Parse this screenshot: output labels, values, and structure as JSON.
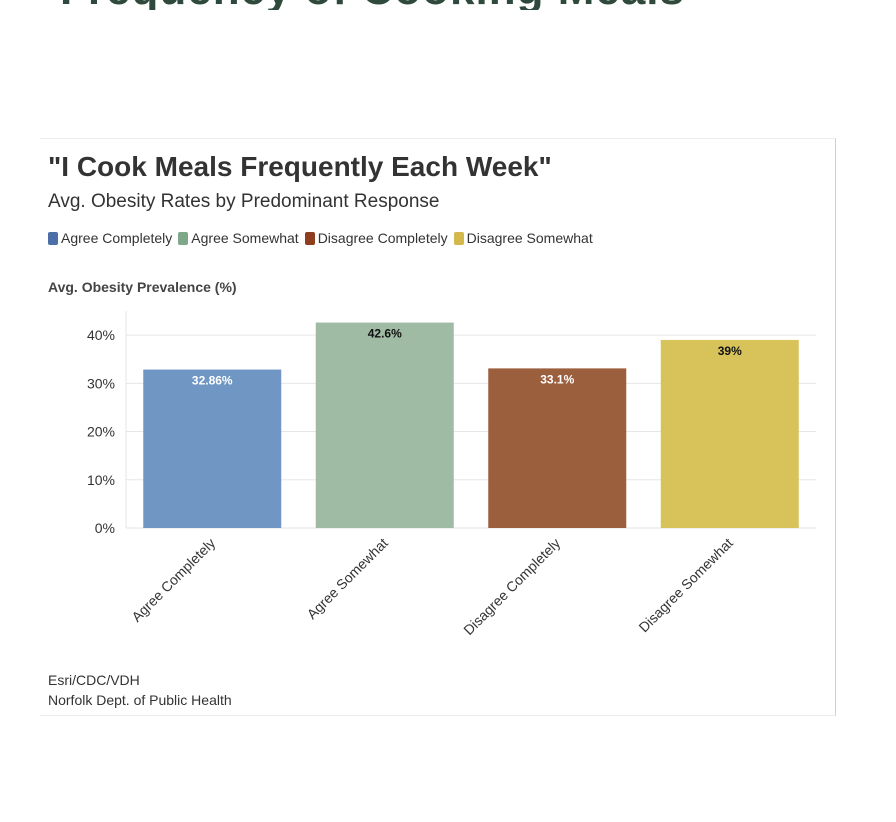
{
  "page_heading": "Frequency of Cooking Meals Weekly",
  "chart_data": {
    "type": "bar",
    "title": "\"I Cook Meals Frequently Each Week\"",
    "subtitle": "Avg. Obesity Rates by Predominant Response",
    "ylabel": "Avg. Obesity Prevalence (%)",
    "xlabel": "",
    "categories": [
      "Agree Completely",
      "Agree Somewhat",
      "Disagree Completely",
      "Disagree Somewhat"
    ],
    "values": [
      32.86,
      42.6,
      33.1,
      39
    ],
    "value_labels": [
      "32.86%",
      "42.6%",
      "33.1%",
      "39%"
    ],
    "colors": [
      "#7097c3",
      "#9fbba3",
      "#9c5f3e",
      "#d8c25a"
    ],
    "legend": [
      {
        "label": "Agree Completely",
        "color": "#4d6fa8"
      },
      {
        "label": "Agree Somewhat",
        "color": "#7fa88a"
      },
      {
        "label": "Disagree Completely",
        "color": "#8e3d1e"
      },
      {
        "label": "Disagree Somewhat",
        "color": "#d3b94c"
      }
    ],
    "yticks": [
      0,
      10,
      20,
      30,
      40
    ],
    "ytick_labels": [
      "0%",
      "10%",
      "20%",
      "30%",
      "40%"
    ],
    "ylim": [
      0,
      45
    ],
    "grid": true,
    "legend_position": "top-left"
  },
  "source": {
    "line1": "Esri/CDC/VDH",
    "line2": "Norfolk Dept. of Public Health"
  }
}
